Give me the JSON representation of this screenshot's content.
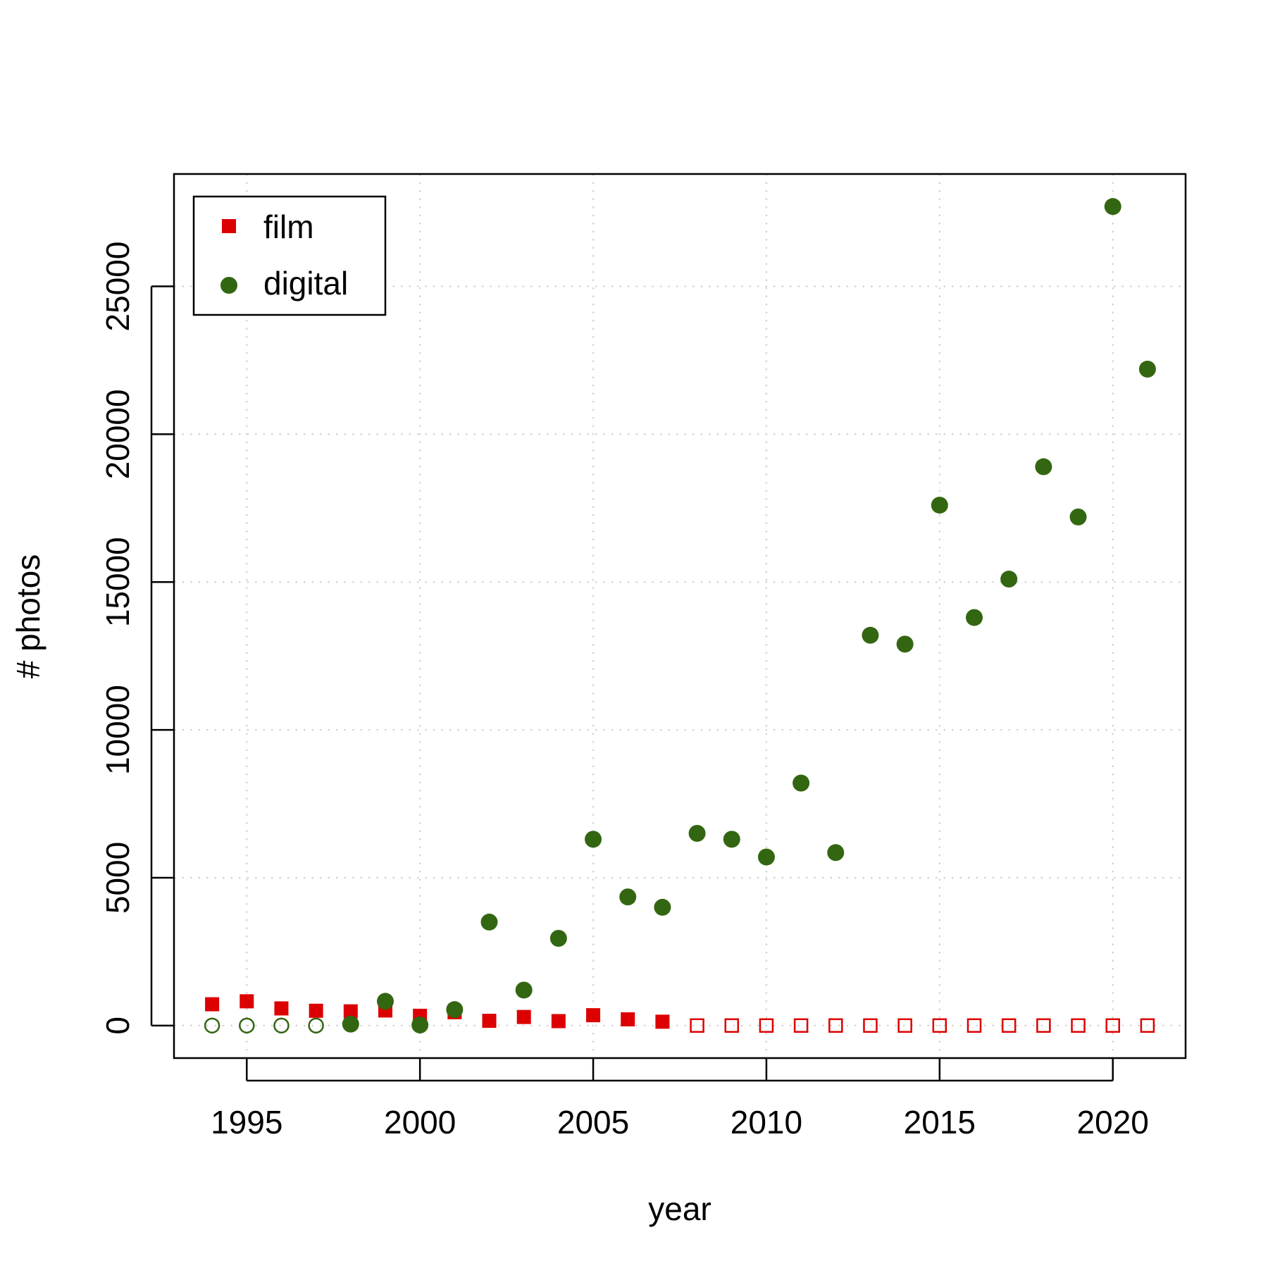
{
  "chart_data": {
    "type": "scatter",
    "title": "",
    "xlabel": "year",
    "ylabel": "# photos",
    "xlim": [
      1992.9,
      2022.1
    ],
    "ylim": [
      -1100,
      28800
    ],
    "xticks": [
      1995,
      2000,
      2005,
      2010,
      2015,
      2020
    ],
    "yticks": [
      0,
      5000,
      10000,
      15000,
      20000,
      25000
    ],
    "grid": true,
    "legend_position": "top-left",
    "series": [
      {
        "name": "film",
        "marker": "square",
        "color": "#DD0000",
        "x": [
          1994,
          1995,
          1996,
          1997,
          1998,
          1999,
          2000,
          2001,
          2002,
          2003,
          2004,
          2005,
          2006,
          2007,
          2008,
          2009,
          2010,
          2011,
          2012,
          2013,
          2014,
          2015,
          2016,
          2017,
          2018,
          2019,
          2020,
          2021
        ],
        "y": [
          720,
          820,
          580,
          500,
          480,
          510,
          330,
          450,
          160,
          290,
          150,
          350,
          210,
          130,
          0,
          0,
          0,
          0,
          0,
          0,
          0,
          0,
          0,
          0,
          0,
          0,
          0,
          0
        ]
      },
      {
        "name": "digital",
        "marker": "circle",
        "color": "#336611",
        "x": [
          1994,
          1995,
          1996,
          1997,
          1998,
          1999,
          2000,
          2001,
          2002,
          2003,
          2004,
          2005,
          2006,
          2007,
          2008,
          2009,
          2010,
          2011,
          2012,
          2013,
          2014,
          2015,
          2016,
          2017,
          2018,
          2019,
          2020,
          2021
        ],
        "y": [
          0,
          0,
          0,
          0,
          50,
          820,
          20,
          540,
          3500,
          1200,
          2950,
          6300,
          4350,
          4000,
          6500,
          6300,
          5700,
          8200,
          5850,
          13200,
          12900,
          17600,
          13800,
          15100,
          18900,
          17200,
          27700,
          22200
        ]
      }
    ]
  }
}
